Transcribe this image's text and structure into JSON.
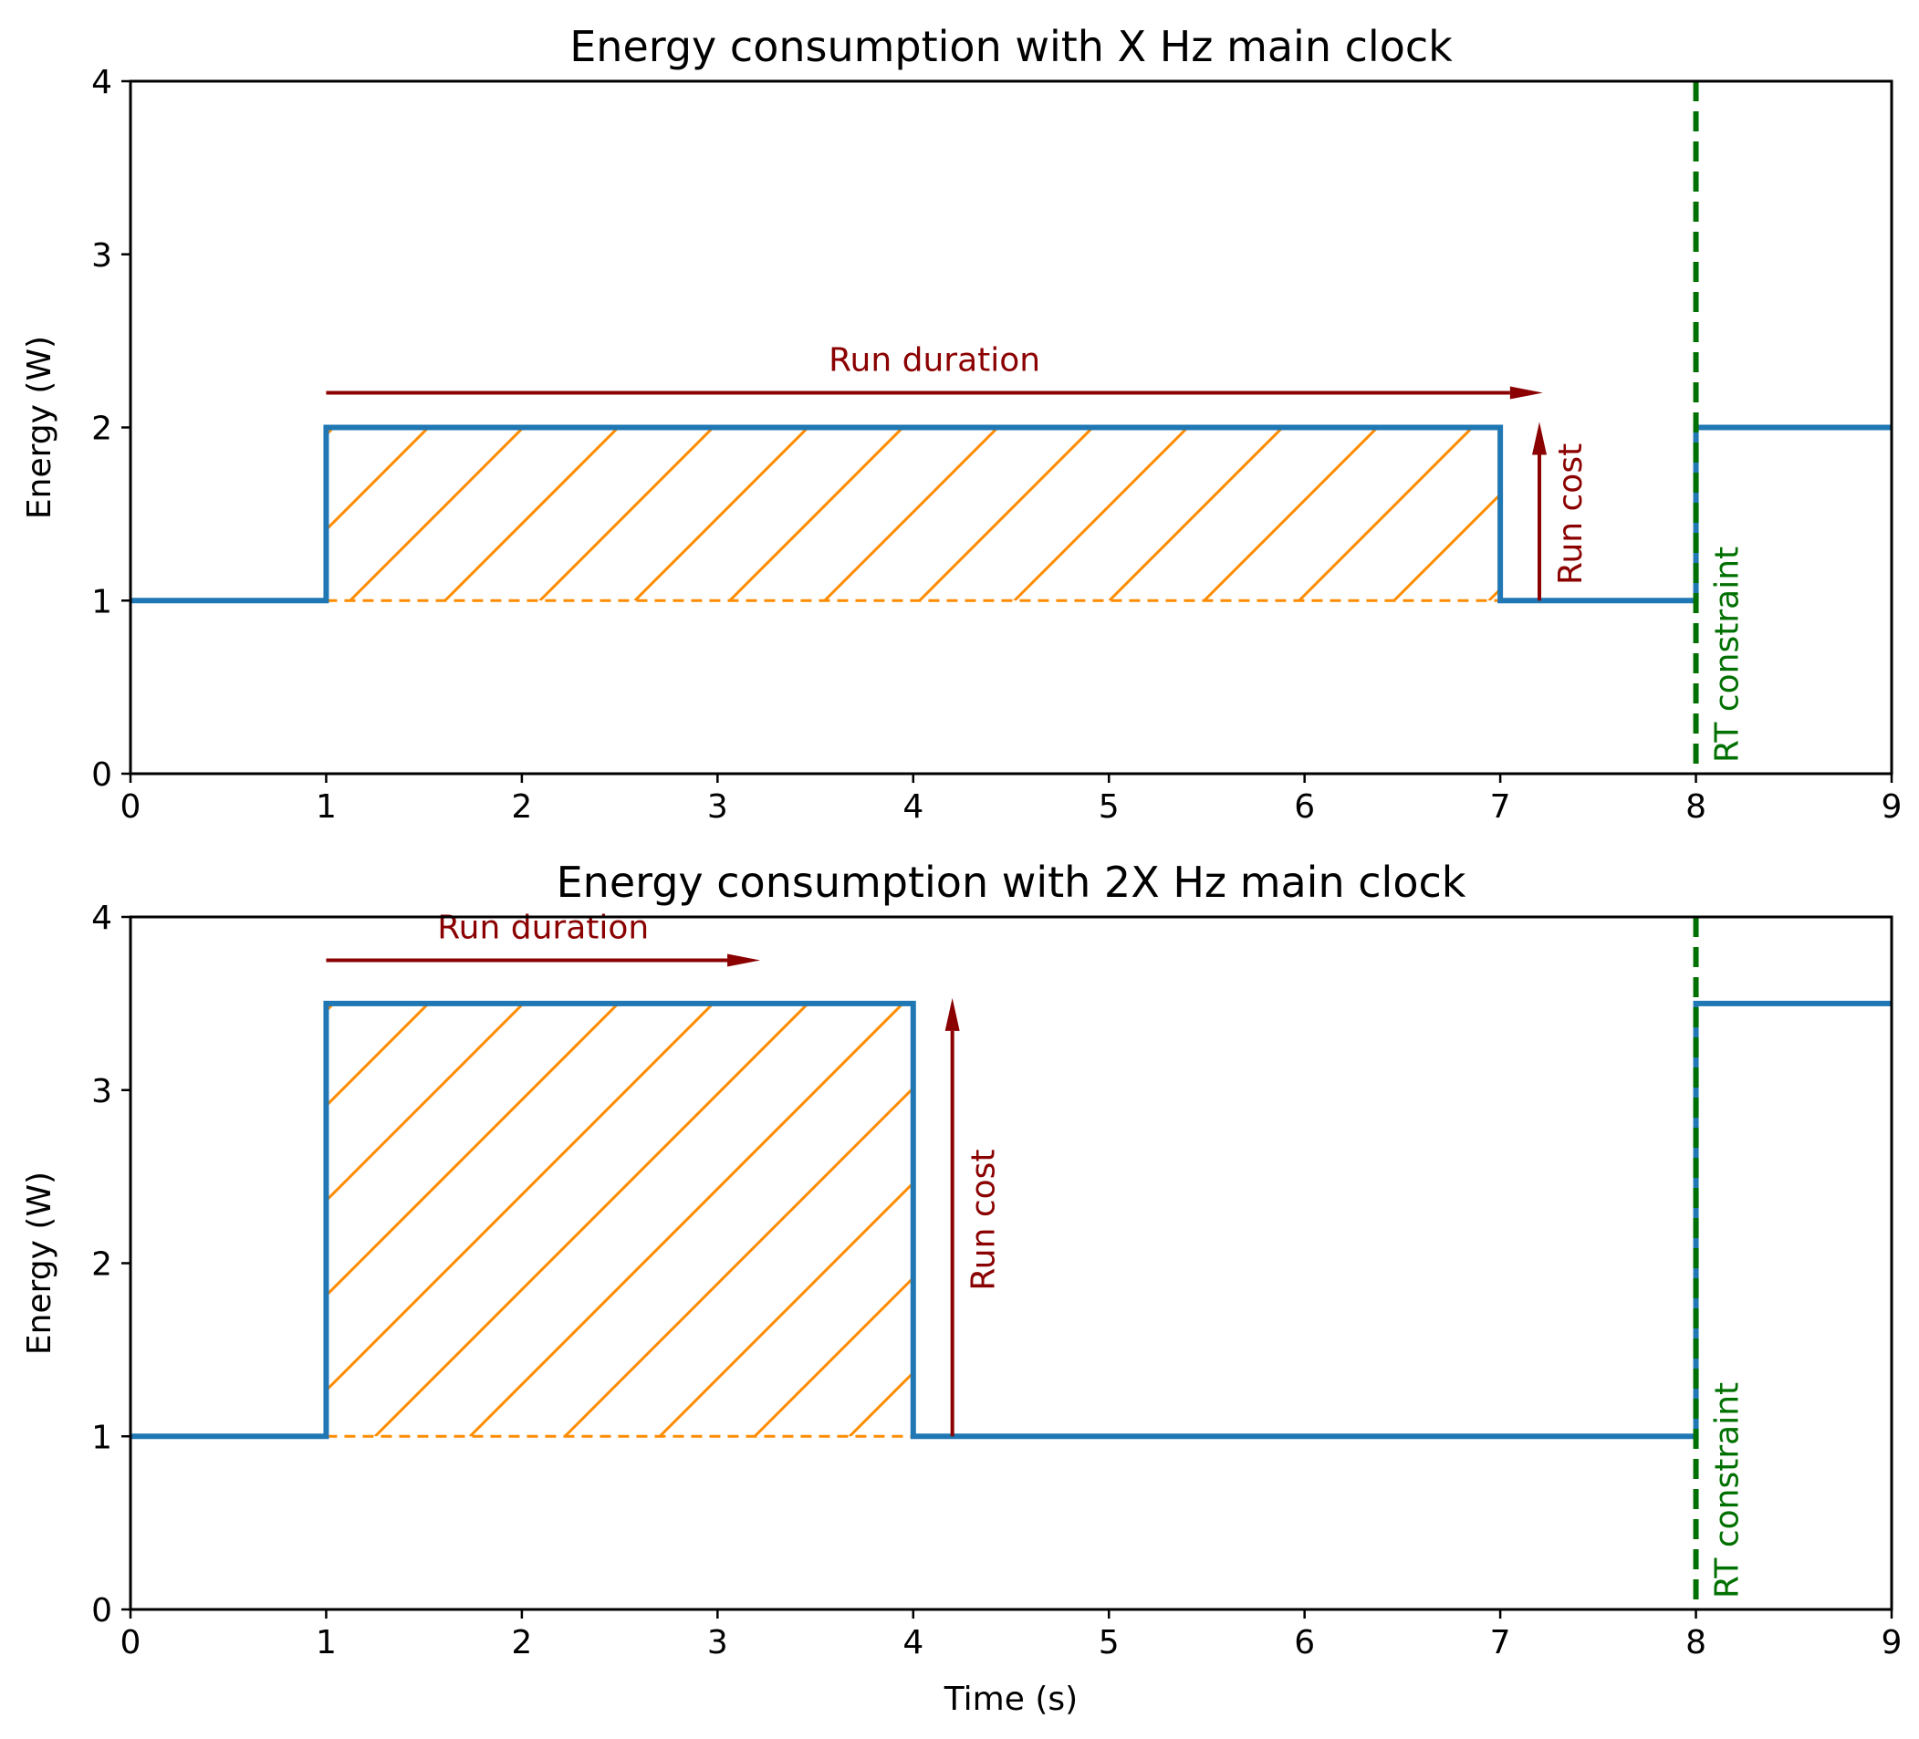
{
  "colors": {
    "series": "#1f77b4",
    "fill": "#ff8c00",
    "annotation": "#8b0000",
    "constraint": "#007000",
    "axis": "#000000"
  },
  "chart_data": [
    {
      "type": "line",
      "title": "Energy consumption with X Hz main clock",
      "xlabel": "",
      "ylabel": "Energy (W)",
      "xlim": [
        0,
        9
      ],
      "ylim": [
        0,
        4
      ],
      "xticks": [
        "0",
        "1",
        "2",
        "3",
        "4",
        "5",
        "6",
        "7",
        "8",
        "9"
      ],
      "yticks": [
        "0",
        "1",
        "2",
        "3",
        "4"
      ],
      "series": [
        {
          "name": "energy",
          "x": [
            0,
            1,
            1,
            7,
            7,
            8,
            8,
            9
          ],
          "y": [
            1,
            1,
            2,
            2,
            1,
            1,
            2,
            2
          ]
        }
      ],
      "hatched_region": {
        "x0": 1,
        "x1": 7,
        "y0": 1,
        "y1": 2
      },
      "run_duration": {
        "label": "Run duration",
        "x0": 1,
        "x1": 7.05,
        "y": 2.2
      },
      "run_cost": {
        "label": "Run cost",
        "x": 7.2,
        "y0": 1,
        "y1": 2
      },
      "constraint": {
        "label": "RT constraint",
        "x": 8
      }
    },
    {
      "type": "line",
      "title": "Energy consumption with 2X Hz main clock",
      "xlabel": "Time (s)",
      "ylabel": "Energy (W)",
      "xlim": [
        0,
        9
      ],
      "ylim": [
        0,
        4
      ],
      "xticks": [
        "0",
        "1",
        "2",
        "3",
        "4",
        "5",
        "6",
        "7",
        "8",
        "9"
      ],
      "yticks": [
        "0",
        "1",
        "2",
        "3",
        "4"
      ],
      "series": [
        {
          "name": "energy",
          "x": [
            0,
            1,
            1,
            4,
            4,
            8,
            8,
            9
          ],
          "y": [
            1,
            1,
            3.5,
            3.5,
            1,
            1,
            3.5,
            3.5
          ]
        }
      ],
      "hatched_region": {
        "x0": 1,
        "x1": 4,
        "y0": 1,
        "y1": 3.5
      },
      "run_duration": {
        "label": "Run duration",
        "x0": 1,
        "x1": 3.05,
        "y": 3.75
      },
      "run_cost": {
        "label": "Run cost",
        "x": 4.2,
        "y0": 1,
        "y1": 3.5
      },
      "constraint": {
        "label": "RT constraint",
        "x": 8
      }
    }
  ]
}
